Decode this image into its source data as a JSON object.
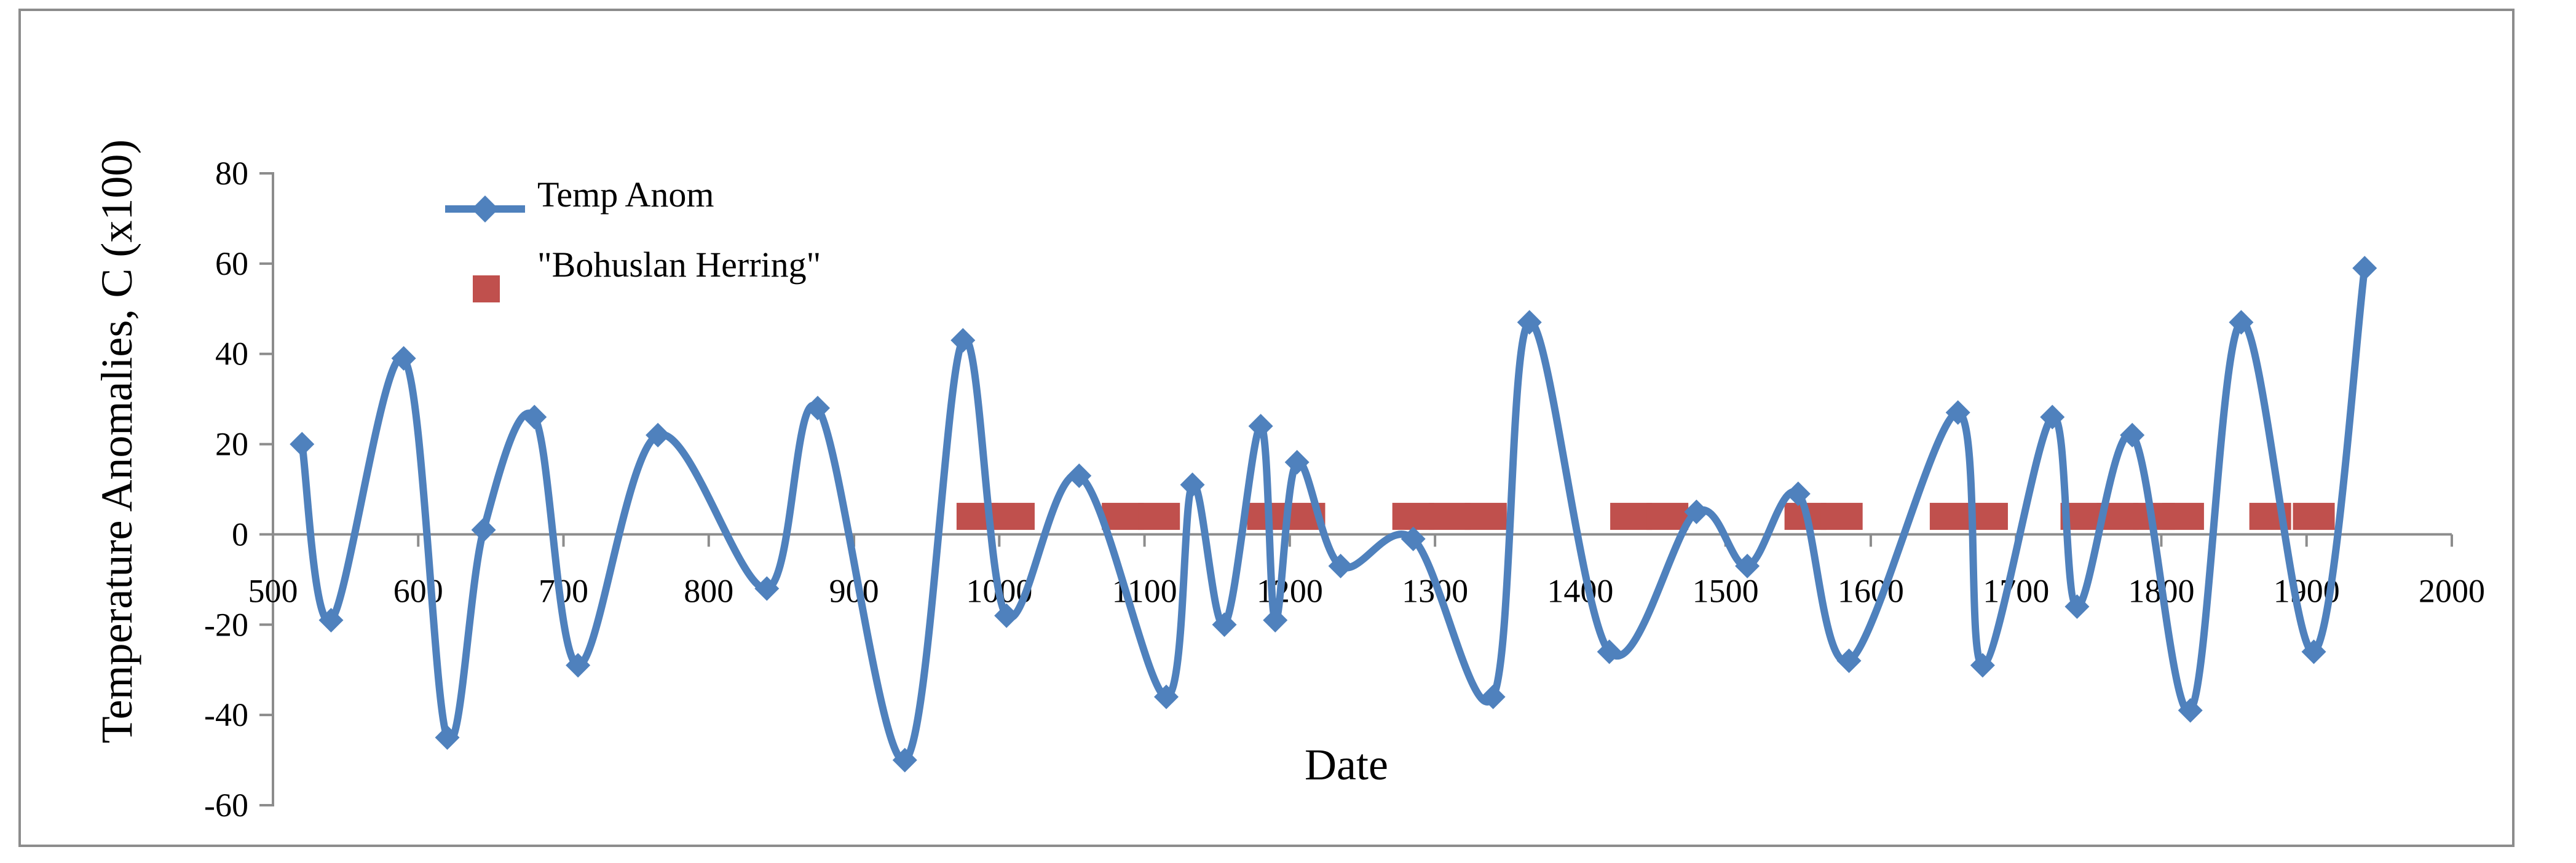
{
  "chart_data": {
    "type": "line",
    "xlabel": "Date",
    "ylabel": "Temperature Anomalies, C (x100)",
    "xlim": [
      500,
      2000
    ],
    "ylim": [
      -60,
      80
    ],
    "x_ticks": [
      500,
      600,
      700,
      800,
      900,
      1000,
      1100,
      1200,
      1300,
      1400,
      1500,
      1600,
      1700,
      1800,
      1900,
      2000
    ],
    "y_ticks": [
      80,
      60,
      40,
      20,
      0,
      -20,
      -40,
      -60
    ],
    "legend_position": "top-left",
    "grid": false,
    "series": [
      {
        "name": "Temp Anom",
        "type": "line",
        "smooth": true,
        "marker": "diamond",
        "color": "#4f81bd",
        "points": [
          [
            520,
            20
          ],
          [
            540,
            -19
          ],
          [
            590,
            39
          ],
          [
            620,
            -45
          ],
          [
            645,
            1
          ],
          [
            680,
            26
          ],
          [
            710,
            -29
          ],
          [
            765,
            22
          ],
          [
            840,
            -12
          ],
          [
            875,
            28
          ],
          [
            935,
            -50
          ],
          [
            975,
            43
          ],
          [
            1005,
            -18
          ],
          [
            1055,
            13
          ],
          [
            1115,
            -36
          ],
          [
            1133,
            11
          ],
          [
            1155,
            -20
          ],
          [
            1180,
            24
          ],
          [
            1190,
            -19
          ],
          [
            1205,
            16
          ],
          [
            1235,
            -7
          ],
          [
            1285,
            -1
          ],
          [
            1340,
            -36
          ],
          [
            1365,
            47
          ],
          [
            1420,
            -26
          ],
          [
            1480,
            5
          ],
          [
            1515,
            -7
          ],
          [
            1550,
            9
          ],
          [
            1585,
            -28
          ],
          [
            1660,
            27
          ],
          [
            1677,
            -29
          ],
          [
            1725,
            26
          ],
          [
            1742,
            -16
          ],
          [
            1780,
            22
          ],
          [
            1820,
            -39
          ],
          [
            1855,
            47
          ],
          [
            1905,
            -26
          ],
          [
            1940,
            59
          ]
        ]
      },
      {
        "name": "\"Bohuslan Herring\"",
        "type": "scatter",
        "marker": "square",
        "color": "#c0504d",
        "y_value": 4,
        "x": [
          985,
          1010,
          1085,
          1110,
          1185,
          1210,
          1285,
          1310,
          1335,
          1435,
          1460,
          1555,
          1580,
          1655,
          1680,
          1745,
          1770,
          1795,
          1815,
          1875,
          1905
        ]
      }
    ]
  }
}
